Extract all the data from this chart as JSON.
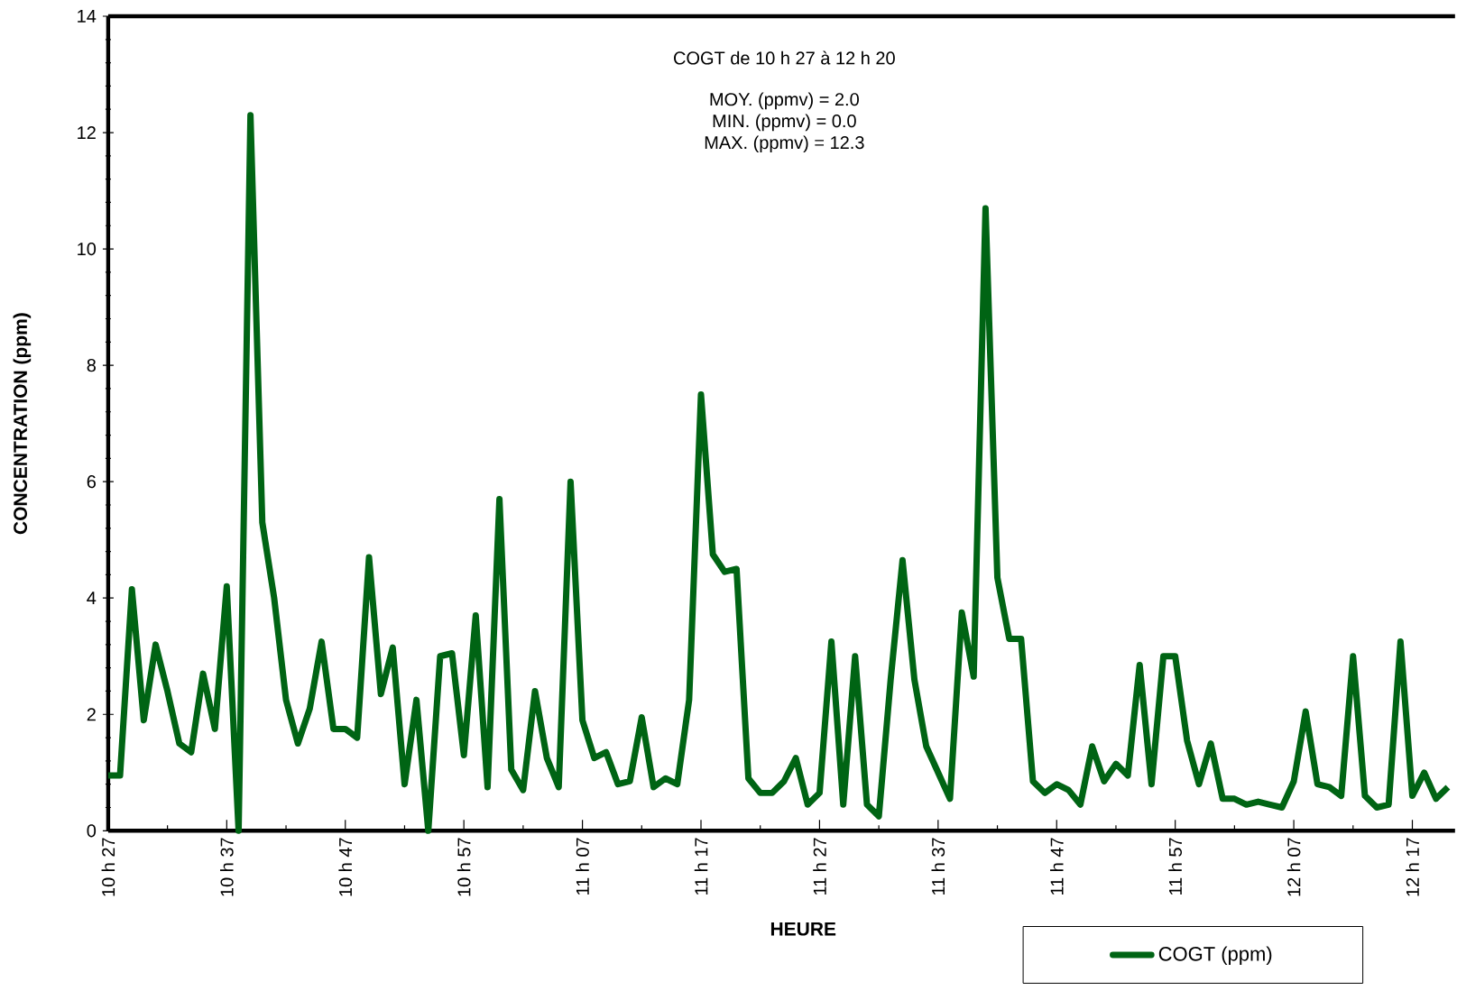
{
  "chart_data": {
    "type": "line",
    "xlabel": "HEURE",
    "ylabel": "CONCENTRATION (ppm)",
    "annotations": [
      "COGT de 10 h 27 à 12 h 20",
      "MOY. (ppmv) = 2.0",
      "MIN. (ppmv) = 0.0",
      "MAX. (ppmv) = 12.3"
    ],
    "categories": [
      "10 h 27",
      null,
      null,
      null,
      null,
      null,
      null,
      null,
      null,
      null,
      "10 h 37",
      null,
      null,
      null,
      null,
      null,
      null,
      null,
      null,
      null,
      "10 h 47",
      null,
      null,
      null,
      null,
      null,
      null,
      null,
      null,
      null,
      "10 h 57",
      null,
      null,
      null,
      null,
      null,
      null,
      null,
      null,
      null,
      "11 h 07",
      null,
      null,
      null,
      null,
      null,
      null,
      null,
      null,
      null,
      "11 h 17",
      null,
      null,
      null,
      null,
      null,
      null,
      null,
      null,
      null,
      "11 h 27",
      null,
      null,
      null,
      null,
      null,
      null,
      null,
      null,
      null,
      "11 h 37",
      null,
      null,
      null,
      null,
      null,
      null,
      null,
      null,
      null,
      "11 h 47",
      null,
      null,
      null,
      null,
      null,
      null,
      null,
      null,
      null,
      "11 h 57",
      null,
      null,
      null,
      null,
      null,
      null,
      null,
      null,
      null,
      "12 h 07",
      null,
      null,
      null,
      null,
      null,
      null,
      null,
      null,
      null,
      "12 h 17",
      null,
      null,
      null
    ],
    "series": [
      {
        "name": "COGT (ppm)",
        "color": "#006414",
        "values": [
          0.95,
          0.95,
          4.15,
          1.9,
          3.2,
          2.4,
          1.5,
          1.35,
          2.7,
          1.75,
          4.2,
          0,
          12.3,
          5.3,
          4.0,
          2.25,
          1.5,
          2.1,
          3.25,
          1.75,
          1.75,
          1.6,
          4.7,
          2.35,
          3.15,
          0.8,
          2.25,
          0,
          3.0,
          3.05,
          1.3,
          3.7,
          0.75,
          5.7,
          1.05,
          0.7,
          2.4,
          1.25,
          0.75,
          6.0,
          1.9,
          1.25,
          1.35,
          0.8,
          0.85,
          1.95,
          0.75,
          0.9,
          0.8,
          2.25,
          7.5,
          4.75,
          4.45,
          4.5,
          0.9,
          0.65,
          0.65,
          0.85,
          1.25,
          0.45,
          0.65,
          3.25,
          0.45,
          3.0,
          0.45,
          0.25,
          2.6,
          4.65,
          2.6,
          1.45,
          1.0,
          0.55,
          3.75,
          2.65,
          10.7,
          4.35,
          3.3,
          3.3,
          0.85,
          0.65,
          0.8,
          0.7,
          0.45,
          1.45,
          0.85,
          1.15,
          0.95,
          2.85,
          0.8,
          3.0,
          3.0,
          1.55,
          0.8,
          1.5,
          0.55,
          0.55,
          0.45,
          0.5,
          0.45,
          0.4,
          0.85,
          2.05,
          0.8,
          0.75,
          0.6,
          3.0,
          0.6,
          0.4,
          0.45,
          3.25,
          0.6,
          1.0,
          0.55,
          0.75
        ]
      }
    ],
    "ylim": [
      0,
      14
    ],
    "yticks": [
      0,
      2,
      4,
      6,
      8,
      10,
      12,
      14
    ],
    "legend": "bottom right",
    "marker": "none",
    "line_style": "solid"
  }
}
